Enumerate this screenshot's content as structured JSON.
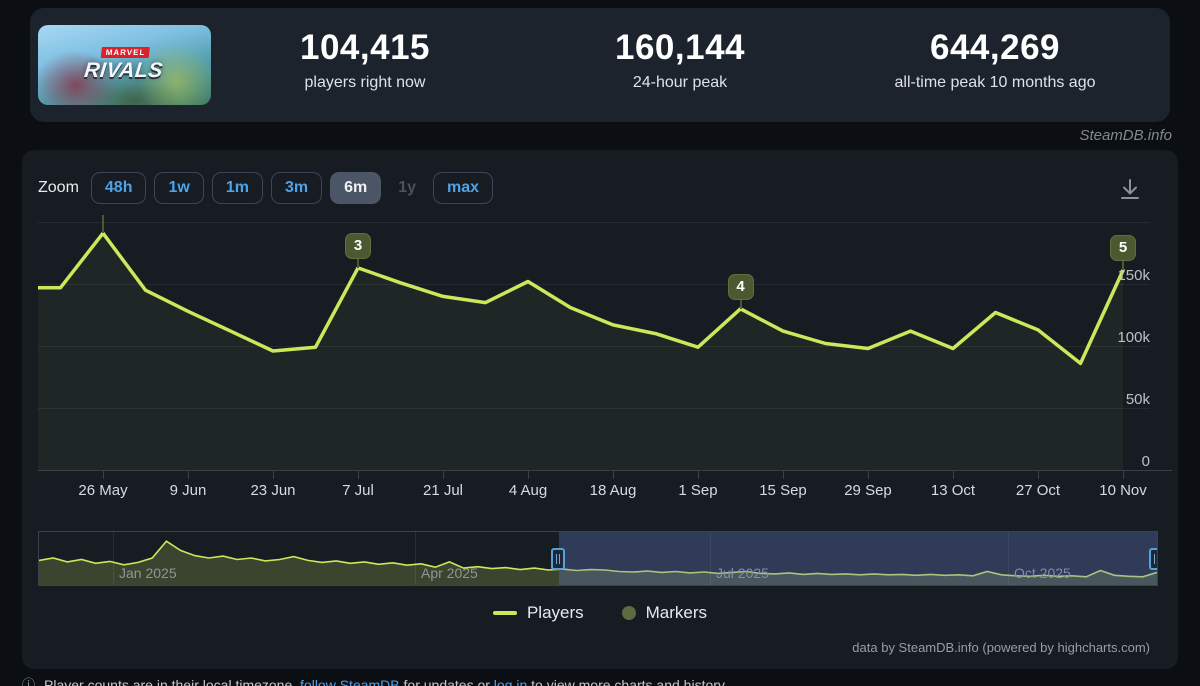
{
  "header": {
    "banner": {
      "brand": "MARVEL",
      "title": "RIVALS"
    },
    "stats": [
      {
        "value": "104,415",
        "label": "players right now"
      },
      {
        "value": "160,144",
        "label": "24-hour peak"
      },
      {
        "value": "644,269",
        "label": "all-time peak 10 months ago"
      }
    ],
    "watermark": "SteamDB.info"
  },
  "toolbar": {
    "zoom_label": "Zoom",
    "buttons": [
      {
        "label": "48h",
        "state": "normal"
      },
      {
        "label": "1w",
        "state": "normal"
      },
      {
        "label": "1m",
        "state": "normal"
      },
      {
        "label": "3m",
        "state": "normal"
      },
      {
        "label": "6m",
        "state": "selected"
      },
      {
        "label": "1y",
        "state": "disabled"
      },
      {
        "label": "max",
        "state": "normal"
      }
    ]
  },
  "chart_data": {
    "type": "line",
    "title": "",
    "xlabel": "",
    "ylabel": "",
    "ylim": [
      0,
      205000
    ],
    "grid": true,
    "legend_position": "bottom-center",
    "series": [
      {
        "name": "Players",
        "color": "#cbe85a",
        "cadence": "weekly peaks, mid-May 2025 to 10 Nov 2025",
        "values": [
          147000,
          147000,
          191000,
          145000,
          128000,
          112000,
          96000,
          99000,
          163000,
          151000,
          140000,
          135000,
          152000,
          131000,
          117000,
          110000,
          99000,
          130000,
          112000,
          102000,
          98000,
          112000,
          98000,
          127000,
          113000,
          86000,
          161000
        ]
      }
    ],
    "x_tick_labels": [
      "26 May",
      "9 Jun",
      "23 Jun",
      "7 Jul",
      "21 Jul",
      "4 Aug",
      "18 Aug",
      "1 Sep",
      "15 Sep",
      "29 Sep",
      "13 Oct",
      "27 Oct",
      "10 Nov"
    ],
    "y_tick_labels": [
      "150k",
      "100k",
      "50k",
      "0"
    ],
    "y_tick_values": [
      150000,
      100000,
      50000,
      0
    ],
    "markers": [
      {
        "label": "",
        "point_index": 2,
        "clipped": true
      },
      {
        "label": "3",
        "point_index": 8
      },
      {
        "label": "4",
        "point_index": 17
      },
      {
        "label": "5",
        "point_index": 26
      }
    ],
    "navigator": {
      "labels": [
        "Jan 2025",
        "Apr 2025",
        "Jul 2025",
        "Oct 2025"
      ],
      "selection": [
        0.4647,
        1.0
      ],
      "values": [
        0.47,
        0.52,
        0.44,
        0.49,
        0.41,
        0.45,
        0.38,
        0.43,
        0.52,
        0.87,
        0.68,
        0.57,
        0.52,
        0.56,
        0.49,
        0.52,
        0.46,
        0.49,
        0.55,
        0.47,
        0.43,
        0.46,
        0.41,
        0.44,
        0.39,
        0.42,
        0.37,
        0.4,
        0.33,
        0.44,
        0.31,
        0.34,
        0.3,
        0.32,
        0.28,
        0.31,
        0.27,
        0.29,
        0.26,
        0.28,
        0.27,
        0.24,
        0.23,
        0.25,
        0.22,
        0.24,
        0.21,
        0.23,
        0.2,
        0.22,
        0.24,
        0.2,
        0.19,
        0.21,
        0.18,
        0.2,
        0.18,
        0.19,
        0.17,
        0.19,
        0.17,
        0.18,
        0.16,
        0.18,
        0.16,
        0.17,
        0.15,
        0.24,
        0.17,
        0.15,
        0.14,
        0.16,
        0.14,
        0.15,
        0.13,
        0.26,
        0.16,
        0.14,
        0.13,
        0.22
      ]
    },
    "legend": [
      {
        "label": "Players",
        "swatch": "line",
        "color": "#cbe85a"
      },
      {
        "label": "Markers",
        "swatch": "circle",
        "color": "#5c6b42"
      }
    ],
    "credits": "data by SteamDB.info (powered by highcharts.com)"
  },
  "footnote": {
    "icon": "clock-icon",
    "text_start": "Player counts are in their local timezone,",
    "link1": "follow SteamDB",
    "text_mid": "for updates or",
    "link2": "log in",
    "text_end": "to view more charts and history."
  },
  "colors": {
    "page_bg": "#0b0e13",
    "card_bg": "#171c23",
    "header_bg": "#1c232d",
    "line": "#cbe85a",
    "marker_badge": "#4c5930",
    "button_text": "#4da3e8",
    "mask": "rgba(100,124,195,0.33)"
  }
}
